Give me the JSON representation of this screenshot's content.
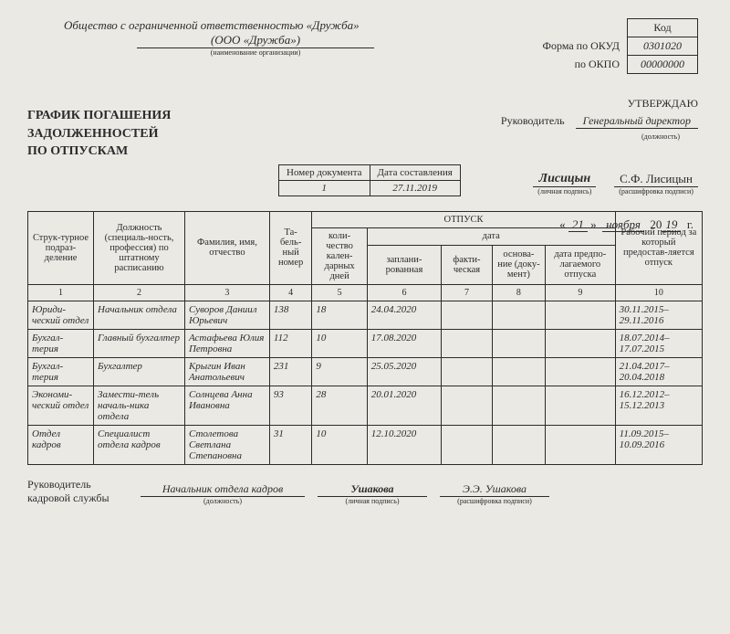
{
  "org": {
    "full_name": "Общество с ограниченной ответственностью «Дружба»",
    "short_name": "(ООО «Дружба»)",
    "caption": "(наименование организации)"
  },
  "codes": {
    "header": "Код",
    "okud_label": "Форма по ОКУД",
    "okud": "0301020",
    "okpo_label": "по ОКПО",
    "okpo": "00000000"
  },
  "approve": {
    "title": "УТВЕРЖДАЮ",
    "role_label": "Руководитель",
    "position": "Генеральный директор",
    "position_caption": "(должность)"
  },
  "doc_title": {
    "l1": "ГРАФИК ПОГАШЕНИЯ",
    "l2": "ЗАДОЛЖЕННОСТЕЙ",
    "l3": "ПО ОТПУСКАМ"
  },
  "doc_info": {
    "num_label": "Номер документа",
    "date_label": "Дата составления",
    "num": "1",
    "date": "27.11.2019"
  },
  "sign": {
    "signature": "Лисицын",
    "signature_caption": "(личная подпись)",
    "decode": "С.Ф. Лисицын",
    "decode_caption": "(расшифровка подписи)"
  },
  "date_line": {
    "open": "«",
    "day": "21",
    "close": "»",
    "month": "ноября",
    "century": "20",
    "year": "19",
    "suffix": "г."
  },
  "columns": {
    "c1": "Струк-турное подраз-деление",
    "c2": "Должность (специаль-ность, профессия) по штатному расписанию",
    "c3": "Фамилия, имя, отчество",
    "c4": "Та-бель-ный номер",
    "vac": "ОТПУСК",
    "c5": "коли-чество кален-дарных дней",
    "date_hdr": "дата",
    "c6": "заплани-рованная",
    "c7": "факти-ческая",
    "c8": "основа-ние (доку-мент)",
    "c9": "дата предпо-лагаемого отпуска",
    "c10": "Рабочий период за который предостав-ляется отпуск"
  },
  "numrow": [
    "1",
    "2",
    "3",
    "4",
    "5",
    "6",
    "7",
    "8",
    "9",
    "10"
  ],
  "rows": [
    {
      "c1": "Юриди-ческий отдел",
      "c2": "Начальник отдела",
      "c3": "Суворов Даниил Юрьевич",
      "c4": "138",
      "c5": "18",
      "c6": "24.04.2020",
      "c7": "",
      "c8": "",
      "c9": "",
      "c10": "30.11.2015–29.11.2016"
    },
    {
      "c1": "Бухгал-терия",
      "c2": "Главный бухгалтер",
      "c3": "Астафьева Юлия Петровна",
      "c4": "112",
      "c5": "10",
      "c6": "17.08.2020",
      "c7": "",
      "c8": "",
      "c9": "",
      "c10": "18.07.2014–17.07.2015"
    },
    {
      "c1": "Бухгал-терия",
      "c2": "Бухгалтер",
      "c3": "Крыгин Иван Анатольевич",
      "c4": "231",
      "c5": "9",
      "c6": "25.05.2020",
      "c7": "",
      "c8": "",
      "c9": "",
      "c10": "21.04.2017–20.04.2018"
    },
    {
      "c1": "Экономи-ческий отдел",
      "c2": "Замести-тель началь-ника отдела",
      "c3": "Солнцева Анна Ивановна",
      "c4": "93",
      "c5": "28",
      "c6": "20.01.2020",
      "c7": "",
      "c8": "",
      "c9": "",
      "c10": "16.12.2012–15.12.2013"
    },
    {
      "c1": "Отдел кадров",
      "c2": "Специалист отдела кадров",
      "c3": "Столетова Светлана Степановна",
      "c4": "31",
      "c5": "10",
      "c6": "12.10.2020",
      "c7": "",
      "c8": "",
      "c9": "",
      "c10": "11.09.2015–10.09.2016"
    }
  ],
  "footer": {
    "label": "Руководитель кадровой службы",
    "position": "Начальник отдела кадров",
    "position_caption": "(должность)",
    "signature": "Ушакова",
    "signature_caption": "(личная подпись)",
    "decode": "Э.Э. Ушакова",
    "decode_caption": "(расшифровка подписи)"
  }
}
